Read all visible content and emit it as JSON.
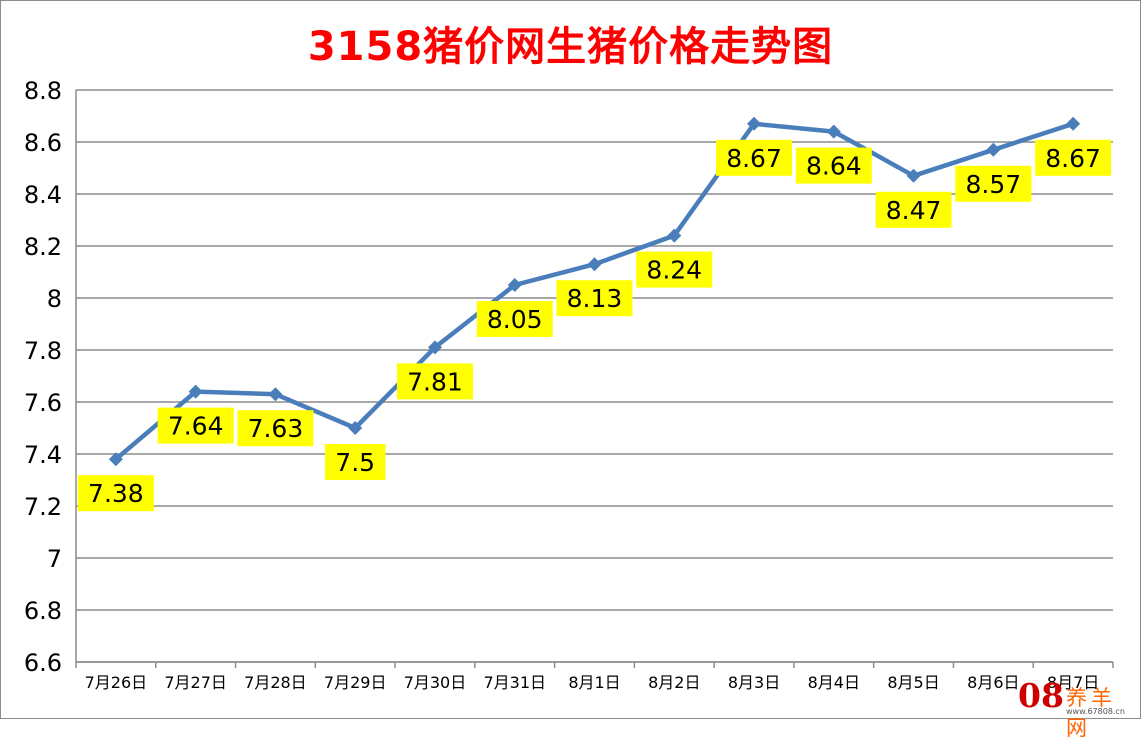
{
  "chart_data": {
    "type": "line",
    "title": "3158猪价网生猪价格走势图",
    "categories": [
      "7月26日",
      "7月27日",
      "7月28日",
      "7月29日",
      "7月30日",
      "7月31日",
      "8月1日",
      "8月2日",
      "8月3日",
      "8月4日",
      "8月5日",
      "8月6日",
      "8月7日"
    ],
    "values": [
      7.38,
      7.64,
      7.63,
      7.5,
      7.81,
      8.05,
      8.13,
      8.24,
      8.67,
      8.64,
      8.47,
      8.57,
      8.67
    ],
    "data_labels": [
      "7.38",
      "7.64",
      "7.63",
      "7.5",
      "7.81",
      "8.05",
      "8.13",
      "8.24",
      "8.67",
      "8.64",
      "8.47",
      "8.57",
      "8.67"
    ],
    "y_ticks": [
      "6.6",
      "6.8",
      "7",
      "7.2",
      "7.4",
      "7.6",
      "7.8",
      "8",
      "8.2",
      "8.4",
      "8.6",
      "8.8"
    ],
    "ylim": [
      6.6,
      8.8
    ],
    "grid": true,
    "legend": "none",
    "colors": {
      "line": "#4a7ebb",
      "title": "#ff0000",
      "label_bg": "#ffff00",
      "grid": "#8c8c8c"
    }
  },
  "watermark": {
    "number": "08",
    "text": "养羊网",
    "url": "www.67808.cn",
    "colors": {
      "number": "#cc0000",
      "text": "#ff6600"
    }
  }
}
